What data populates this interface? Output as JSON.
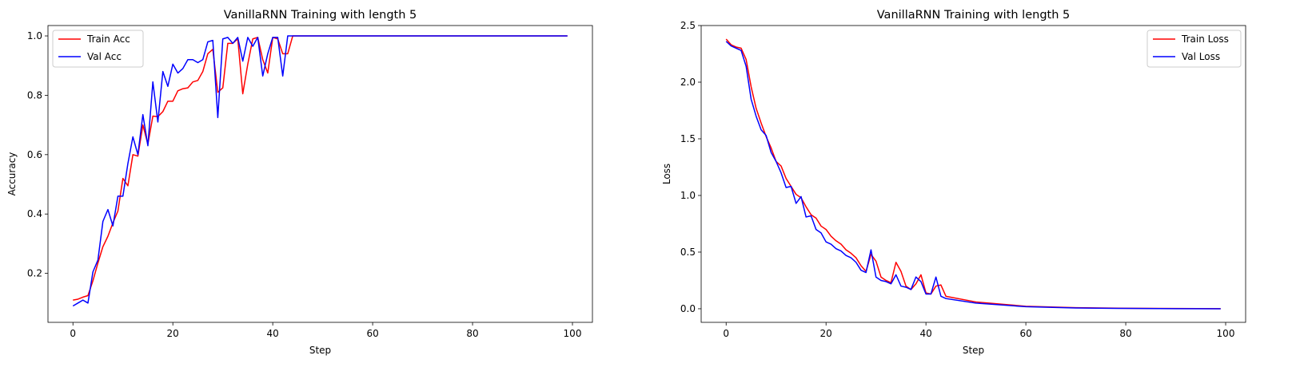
{
  "chart_data": [
    {
      "type": "line",
      "title": "VanillaRNN Training with length 5",
      "xlabel": "Step",
      "ylabel": "Accuracy",
      "xlim": [
        -5,
        104
      ],
      "ylim": [
        0.035,
        1.035
      ],
      "xticks": [
        0,
        20,
        40,
        60,
        80,
        100
      ],
      "yticks": [
        0.2,
        0.4,
        0.6,
        0.8,
        1.0
      ],
      "ytick_labels": [
        "0.2",
        "0.4",
        "0.6",
        "0.8",
        "1.0"
      ],
      "legend_position": "top-left",
      "grid": false,
      "x": [
        0,
        1,
        2,
        3,
        4,
        5,
        6,
        7,
        8,
        9,
        10,
        11,
        12,
        13,
        14,
        15,
        16,
        17,
        18,
        19,
        20,
        21,
        22,
        23,
        24,
        25,
        26,
        27,
        28,
        29,
        30,
        31,
        32,
        33,
        34,
        35,
        36,
        37,
        38,
        39,
        40,
        41,
        42,
        43,
        44,
        99
      ],
      "series": [
        {
          "name": "Train Acc",
          "color": "#ff0000",
          "values": [
            0.11,
            0.113,
            0.12,
            0.125,
            0.175,
            0.235,
            0.29,
            0.325,
            0.37,
            0.41,
            0.52,
            0.495,
            0.6,
            0.595,
            0.7,
            0.635,
            0.73,
            0.728,
            0.745,
            0.78,
            0.78,
            0.815,
            0.822,
            0.825,
            0.845,
            0.85,
            0.88,
            0.94,
            0.955,
            0.81,
            0.825,
            0.975,
            0.975,
            0.99,
            0.805,
            0.905,
            0.99,
            0.995,
            0.92,
            0.875,
            0.995,
            0.99,
            0.94,
            0.94,
            1.0,
            1.0
          ]
        },
        {
          "name": "Val Acc",
          "color": "#0000ff",
          "values": [
            0.09,
            0.1,
            0.11,
            0.1,
            0.205,
            0.245,
            0.375,
            0.415,
            0.36,
            0.46,
            0.46,
            0.57,
            0.66,
            0.6,
            0.735,
            0.63,
            0.845,
            0.71,
            0.88,
            0.83,
            0.905,
            0.875,
            0.89,
            0.92,
            0.92,
            0.91,
            0.92,
            0.98,
            0.985,
            0.725,
            0.99,
            0.995,
            0.975,
            0.995,
            0.915,
            0.995,
            0.965,
            0.995,
            0.865,
            0.94,
            0.995,
            0.995,
            0.865,
            1.0,
            1.0,
            1.0
          ]
        }
      ]
    },
    {
      "type": "line",
      "title": "VanillaRNN Training with length 5",
      "xlabel": "Step",
      "ylabel": "Loss",
      "xlim": [
        -5,
        104
      ],
      "ylim": [
        -0.12,
        2.5
      ],
      "xticks": [
        0,
        20,
        40,
        60,
        80,
        100
      ],
      "yticks": [
        0.0,
        0.5,
        1.0,
        1.5,
        2.0,
        2.5
      ],
      "ytick_labels": [
        "0.0",
        "0.5",
        "1.0",
        "1.5",
        "2.0",
        "2.5"
      ],
      "legend_position": "top-right",
      "grid": false,
      "x": [
        0,
        1,
        2,
        3,
        4,
        5,
        6,
        7,
        8,
        9,
        10,
        11,
        12,
        13,
        14,
        15,
        16,
        17,
        18,
        19,
        20,
        21,
        22,
        23,
        24,
        25,
        26,
        27,
        28,
        29,
        30,
        31,
        32,
        33,
        34,
        35,
        36,
        37,
        38,
        39,
        40,
        41,
        42,
        43,
        44,
        50,
        60,
        70,
        80,
        90,
        99
      ],
      "series": [
        {
          "name": "Train Loss",
          "color": "#ff0000",
          "values": [
            2.38,
            2.33,
            2.31,
            2.3,
            2.2,
            1.96,
            1.77,
            1.64,
            1.52,
            1.42,
            1.3,
            1.26,
            1.15,
            1.08,
            1.01,
            0.98,
            0.9,
            0.83,
            0.8,
            0.73,
            0.7,
            0.64,
            0.6,
            0.57,
            0.52,
            0.49,
            0.45,
            0.38,
            0.33,
            0.48,
            0.42,
            0.28,
            0.25,
            0.23,
            0.41,
            0.33,
            0.2,
            0.17,
            0.22,
            0.3,
            0.14,
            0.13,
            0.2,
            0.21,
            0.11,
            0.06,
            0.022,
            0.009,
            0.004,
            0.002,
            0.001
          ]
        },
        {
          "name": "Val Loss",
          "color": "#0000ff",
          "values": [
            2.36,
            2.32,
            2.3,
            2.28,
            2.14,
            1.85,
            1.7,
            1.58,
            1.53,
            1.38,
            1.3,
            1.2,
            1.07,
            1.08,
            0.93,
            0.99,
            0.81,
            0.82,
            0.7,
            0.67,
            0.59,
            0.57,
            0.53,
            0.51,
            0.47,
            0.45,
            0.41,
            0.34,
            0.32,
            0.52,
            0.28,
            0.25,
            0.24,
            0.22,
            0.3,
            0.2,
            0.19,
            0.17,
            0.28,
            0.24,
            0.13,
            0.13,
            0.28,
            0.11,
            0.09,
            0.05,
            0.018,
            0.007,
            0.003,
            0.001,
            0.0
          ]
        }
      ]
    }
  ]
}
